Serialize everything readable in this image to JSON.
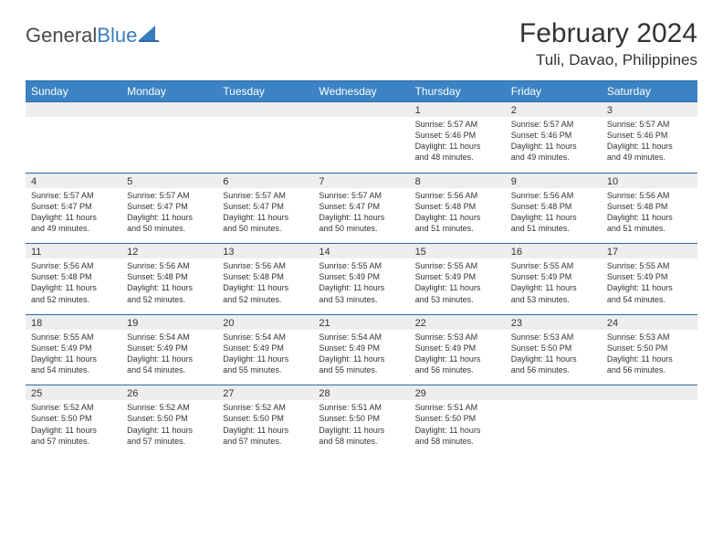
{
  "brand": {
    "name_part1": "General",
    "name_part2": "Blue"
  },
  "title": "February 2024",
  "location": "Tuli, Davao, Philippines",
  "colors": {
    "header_bg": "#3b83c4",
    "header_text": "#ffffff",
    "border": "#2c6aa8",
    "daynum_bg": "#eeeeee",
    "text": "#333333",
    "brand_gray": "#4a4a4a",
    "brand_blue": "#3b7bbf"
  },
  "typography": {
    "title_fontsize": 30,
    "location_fontsize": 17,
    "weekday_fontsize": 12,
    "daynum_fontsize": 11,
    "cell_fontsize": 9
  },
  "weekdays": [
    "Sunday",
    "Monday",
    "Tuesday",
    "Wednesday",
    "Thursday",
    "Friday",
    "Saturday"
  ],
  "weeks": [
    [
      null,
      null,
      null,
      null,
      {
        "d": "1",
        "sr": "Sunrise: 5:57 AM",
        "ss": "Sunset: 5:46 PM",
        "dl1": "Daylight: 11 hours",
        "dl2": "and 48 minutes."
      },
      {
        "d": "2",
        "sr": "Sunrise: 5:57 AM",
        "ss": "Sunset: 5:46 PM",
        "dl1": "Daylight: 11 hours",
        "dl2": "and 49 minutes."
      },
      {
        "d": "3",
        "sr": "Sunrise: 5:57 AM",
        "ss": "Sunset: 5:46 PM",
        "dl1": "Daylight: 11 hours",
        "dl2": "and 49 minutes."
      }
    ],
    [
      {
        "d": "4",
        "sr": "Sunrise: 5:57 AM",
        "ss": "Sunset: 5:47 PM",
        "dl1": "Daylight: 11 hours",
        "dl2": "and 49 minutes."
      },
      {
        "d": "5",
        "sr": "Sunrise: 5:57 AM",
        "ss": "Sunset: 5:47 PM",
        "dl1": "Daylight: 11 hours",
        "dl2": "and 50 minutes."
      },
      {
        "d": "6",
        "sr": "Sunrise: 5:57 AM",
        "ss": "Sunset: 5:47 PM",
        "dl1": "Daylight: 11 hours",
        "dl2": "and 50 minutes."
      },
      {
        "d": "7",
        "sr": "Sunrise: 5:57 AM",
        "ss": "Sunset: 5:47 PM",
        "dl1": "Daylight: 11 hours",
        "dl2": "and 50 minutes."
      },
      {
        "d": "8",
        "sr": "Sunrise: 5:56 AM",
        "ss": "Sunset: 5:48 PM",
        "dl1": "Daylight: 11 hours",
        "dl2": "and 51 minutes."
      },
      {
        "d": "9",
        "sr": "Sunrise: 5:56 AM",
        "ss": "Sunset: 5:48 PM",
        "dl1": "Daylight: 11 hours",
        "dl2": "and 51 minutes."
      },
      {
        "d": "10",
        "sr": "Sunrise: 5:56 AM",
        "ss": "Sunset: 5:48 PM",
        "dl1": "Daylight: 11 hours",
        "dl2": "and 51 minutes."
      }
    ],
    [
      {
        "d": "11",
        "sr": "Sunrise: 5:56 AM",
        "ss": "Sunset: 5:48 PM",
        "dl1": "Daylight: 11 hours",
        "dl2": "and 52 minutes."
      },
      {
        "d": "12",
        "sr": "Sunrise: 5:56 AM",
        "ss": "Sunset: 5:48 PM",
        "dl1": "Daylight: 11 hours",
        "dl2": "and 52 minutes."
      },
      {
        "d": "13",
        "sr": "Sunrise: 5:56 AM",
        "ss": "Sunset: 5:48 PM",
        "dl1": "Daylight: 11 hours",
        "dl2": "and 52 minutes."
      },
      {
        "d": "14",
        "sr": "Sunrise: 5:55 AM",
        "ss": "Sunset: 5:49 PM",
        "dl1": "Daylight: 11 hours",
        "dl2": "and 53 minutes."
      },
      {
        "d": "15",
        "sr": "Sunrise: 5:55 AM",
        "ss": "Sunset: 5:49 PM",
        "dl1": "Daylight: 11 hours",
        "dl2": "and 53 minutes."
      },
      {
        "d": "16",
        "sr": "Sunrise: 5:55 AM",
        "ss": "Sunset: 5:49 PM",
        "dl1": "Daylight: 11 hours",
        "dl2": "and 53 minutes."
      },
      {
        "d": "17",
        "sr": "Sunrise: 5:55 AM",
        "ss": "Sunset: 5:49 PM",
        "dl1": "Daylight: 11 hours",
        "dl2": "and 54 minutes."
      }
    ],
    [
      {
        "d": "18",
        "sr": "Sunrise: 5:55 AM",
        "ss": "Sunset: 5:49 PM",
        "dl1": "Daylight: 11 hours",
        "dl2": "and 54 minutes."
      },
      {
        "d": "19",
        "sr": "Sunrise: 5:54 AM",
        "ss": "Sunset: 5:49 PM",
        "dl1": "Daylight: 11 hours",
        "dl2": "and 54 minutes."
      },
      {
        "d": "20",
        "sr": "Sunrise: 5:54 AM",
        "ss": "Sunset: 5:49 PM",
        "dl1": "Daylight: 11 hours",
        "dl2": "and 55 minutes."
      },
      {
        "d": "21",
        "sr": "Sunrise: 5:54 AM",
        "ss": "Sunset: 5:49 PM",
        "dl1": "Daylight: 11 hours",
        "dl2": "and 55 minutes."
      },
      {
        "d": "22",
        "sr": "Sunrise: 5:53 AM",
        "ss": "Sunset: 5:49 PM",
        "dl1": "Daylight: 11 hours",
        "dl2": "and 56 minutes."
      },
      {
        "d": "23",
        "sr": "Sunrise: 5:53 AM",
        "ss": "Sunset: 5:50 PM",
        "dl1": "Daylight: 11 hours",
        "dl2": "and 56 minutes."
      },
      {
        "d": "24",
        "sr": "Sunrise: 5:53 AM",
        "ss": "Sunset: 5:50 PM",
        "dl1": "Daylight: 11 hours",
        "dl2": "and 56 minutes."
      }
    ],
    [
      {
        "d": "25",
        "sr": "Sunrise: 5:52 AM",
        "ss": "Sunset: 5:50 PM",
        "dl1": "Daylight: 11 hours",
        "dl2": "and 57 minutes."
      },
      {
        "d": "26",
        "sr": "Sunrise: 5:52 AM",
        "ss": "Sunset: 5:50 PM",
        "dl1": "Daylight: 11 hours",
        "dl2": "and 57 minutes."
      },
      {
        "d": "27",
        "sr": "Sunrise: 5:52 AM",
        "ss": "Sunset: 5:50 PM",
        "dl1": "Daylight: 11 hours",
        "dl2": "and 57 minutes."
      },
      {
        "d": "28",
        "sr": "Sunrise: 5:51 AM",
        "ss": "Sunset: 5:50 PM",
        "dl1": "Daylight: 11 hours",
        "dl2": "and 58 minutes."
      },
      {
        "d": "29",
        "sr": "Sunrise: 5:51 AM",
        "ss": "Sunset: 5:50 PM",
        "dl1": "Daylight: 11 hours",
        "dl2": "and 58 minutes."
      },
      null,
      null
    ]
  ]
}
